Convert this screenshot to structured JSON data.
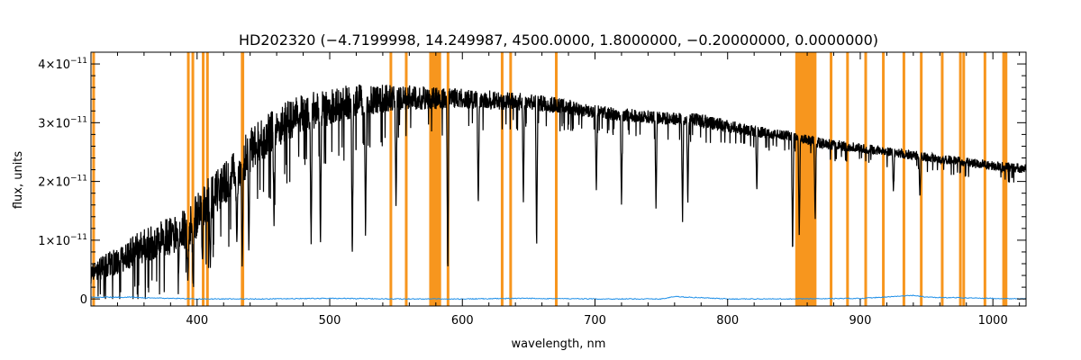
{
  "chart_data": {
    "type": "line",
    "title": "HD202320    (−4.7199998, 14.249987, 4500.0000, 1.8000000, −0.20000000, 0.0000000)",
    "xlabel": "wavelength, nm",
    "ylabel": "flux, units",
    "xlim": [
      320,
      1025
    ],
    "ylim": [
      -1.2e-12,
      4.2e-11
    ],
    "x_ticks": [
      {
        "value": 400,
        "label": "400"
      },
      {
        "value": 500,
        "label": "500"
      },
      {
        "value": 600,
        "label": "600"
      },
      {
        "value": 700,
        "label": "700"
      },
      {
        "value": 800,
        "label": "800"
      },
      {
        "value": 900,
        "label": "900"
      },
      {
        "value": 1000,
        "label": "1000"
      }
    ],
    "y_ticks": [
      {
        "value": 0,
        "mantissa": "0",
        "exponent": ""
      },
      {
        "value": 1e-11,
        "mantissa": "1×10",
        "exponent": "−11"
      },
      {
        "value": 2e-11,
        "mantissa": "2×10",
        "exponent": "−11"
      },
      {
        "value": 3e-11,
        "mantissa": "3×10",
        "exponent": "−11"
      },
      {
        "value": 4e-11,
        "mantissa": "4×10",
        "exponent": "−11"
      }
    ],
    "series": [
      {
        "color": "#000000",
        "envelope": {
          "x": [
            320,
            340,
            360,
            380,
            395,
            405,
            420,
            440,
            460,
            480,
            500,
            520,
            540,
            560,
            580,
            600,
            620,
            650,
            680,
            700,
            720,
            750,
            780,
            800,
            820,
            850,
            870,
            900,
            950,
            1000,
            1025
          ],
          "upper": [
            6e-12,
            9e-12,
            1.2e-11,
            1.4e-11,
            1.6e-11,
            2e-11,
            2.3e-11,
            2.9e-11,
            3.3e-11,
            3.5e-11,
            3.6e-11,
            3.65e-11,
            3.65e-11,
            3.65e-11,
            3.6e-11,
            3.6e-11,
            3.55e-11,
            3.5e-11,
            3.4e-11,
            3.3e-11,
            3.25e-11,
            3.2e-11,
            3.15e-11,
            3.05e-11,
            2.95e-11,
            2.85e-11,
            2.75e-11,
            2.65e-11,
            2.5e-11,
            2.35e-11,
            2.3e-11
          ],
          "lower": [
            8e-13,
            1.5e-12,
            3e-12,
            4e-12,
            5e-12,
            8e-12,
            1.2e-11,
            1.7e-11,
            2.2e-11,
            2.5e-11,
            2.6e-11,
            2.8e-11,
            2.9e-11,
            3e-11,
            3e-11,
            3.05e-11,
            3.05e-11,
            3.05e-11,
            3e-11,
            2.95e-11,
            2.9e-11,
            2.85e-11,
            2.8e-11,
            2.7e-11,
            2.65e-11,
            2.6e-11,
            2.45e-11,
            2.4e-11,
            2.25e-11,
            2.1e-11,
            2.05e-11
          ]
        },
        "dips": [
          {
            "x": 386,
            "y": 4e-12
          },
          {
            "x": 393,
            "y": 3e-12
          },
          {
            "x": 397,
            "y": 2e-12
          },
          {
            "x": 404,
            "y": 6e-12
          },
          {
            "x": 410,
            "y": 5e-12
          },
          {
            "x": 430,
            "y": 9e-12
          },
          {
            "x": 434,
            "y": 5e-12
          },
          {
            "x": 439,
            "y": 8e-12
          },
          {
            "x": 458,
            "y": 1.2e-11
          },
          {
            "x": 486,
            "y": 9e-12
          },
          {
            "x": 493,
            "y": 8e-12
          },
          {
            "x": 517,
            "y": 6e-12
          },
          {
            "x": 527,
            "y": 1e-11
          },
          {
            "x": 550,
            "y": 1.5e-11
          },
          {
            "x": 589,
            "y": 3e-12
          },
          {
            "x": 612,
            "y": 1.5e-11
          },
          {
            "x": 646,
            "y": 1.6e-11
          },
          {
            "x": 656,
            "y": 8e-12
          },
          {
            "x": 701,
            "y": 1.8e-11
          },
          {
            "x": 720,
            "y": 1.6e-11
          },
          {
            "x": 746,
            "y": 1.5e-11
          },
          {
            "x": 766,
            "y": 1.3e-11
          },
          {
            "x": 770,
            "y": 1.6e-11
          },
          {
            "x": 822,
            "y": 1.8e-11
          },
          {
            "x": 849,
            "y": 7e-12
          },
          {
            "x": 854,
            "y": 1e-11
          },
          {
            "x": 866,
            "y": 1.3e-11
          },
          {
            "x": 925,
            "y": 1.8e-11
          },
          {
            "x": 945,
            "y": 1.7e-11
          }
        ]
      },
      {
        "color": "#1e8fe8",
        "x": [
          320,
          355,
          360,
          400,
          450,
          500,
          550,
          600,
          650,
          700,
          750,
          760,
          800,
          850,
          900,
          940,
          950,
          1000,
          1025
        ],
        "y": [
          3e-13,
          3e-13,
          2e-13,
          0.0,
          0.0,
          1e-13,
          0.0,
          0.0,
          1e-13,
          0.0,
          0.0,
          4e-13,
          0.0,
          0.0,
          1e-13,
          6e-13,
          3e-13,
          1e-13,
          0.0
        ]
      }
    ],
    "mask": {
      "color": "#f7961e",
      "lines": [
        322,
        393.4,
        396.8,
        404.6,
        407.8,
        434.0,
        434.5,
        546.1,
        557.7,
        589.2,
        630.0,
        636.4,
        670.8,
        878.0,
        890.4,
        904.1,
        917.4,
        932.9,
        946.0,
        961.8,
        975.5,
        978.0,
        994.0,
        1008.1,
        1009.9
      ],
      "bands": [
        [
          575,
          584
        ],
        [
          851,
          867
        ]
      ]
    }
  }
}
